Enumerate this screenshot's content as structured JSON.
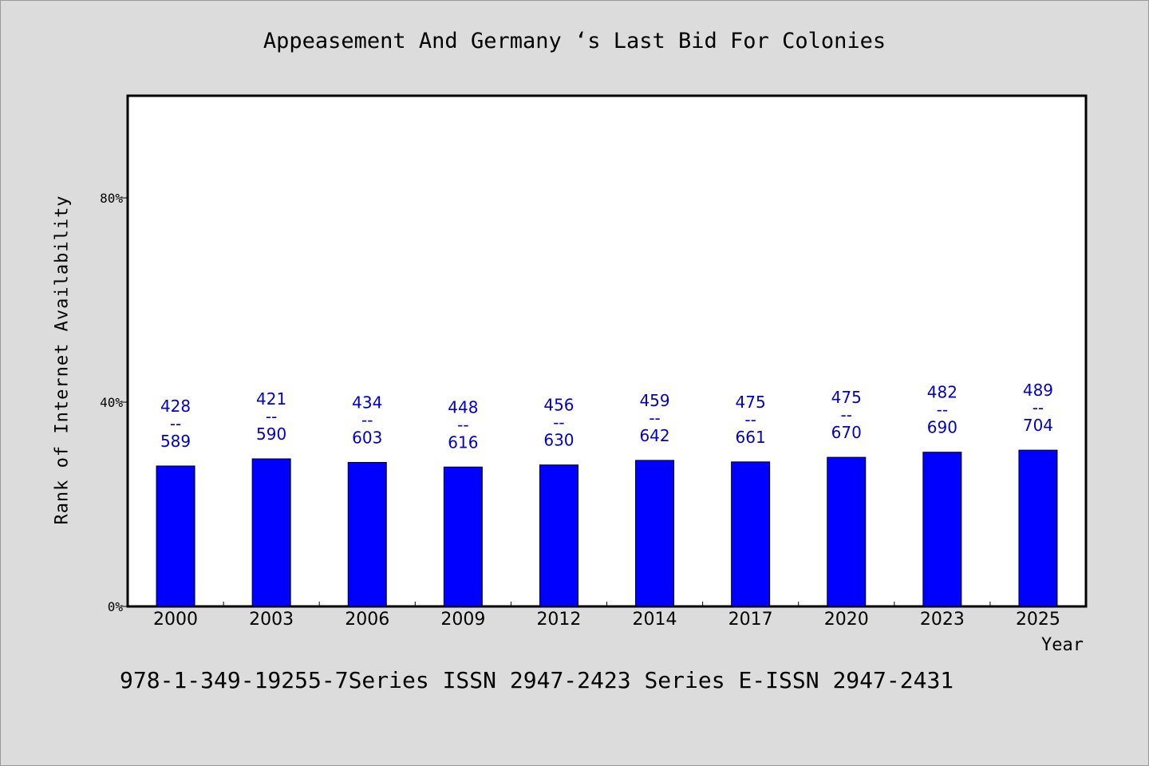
{
  "colors": {
    "background": "#dcdcdc",
    "plot_background": "#ffffff",
    "bar": "#0000ff",
    "data_label": "#0000cc"
  },
  "chart_data": {
    "type": "bar",
    "title": "Appeasement And Germany ‘s Last Bid For Colonies",
    "xlabel": "Year",
    "ylabel": "Rank of Internet Availability",
    "categories": [
      "2000",
      "2003",
      "2006",
      "2009",
      "2012",
      "2014",
      "2017",
      "2020",
      "2023",
      "2025"
    ],
    "values": [
      27.5,
      28.9,
      28.2,
      27.3,
      27.7,
      28.6,
      28.3,
      29.2,
      30.2,
      30.6
    ],
    "data_labels": [
      [
        "428",
        "--",
        "589"
      ],
      [
        "421",
        "--",
        "590"
      ],
      [
        "434",
        "--",
        "603"
      ],
      [
        "448",
        "--",
        "616"
      ],
      [
        "456",
        "--",
        "630"
      ],
      [
        "459",
        "--",
        "642"
      ],
      [
        "475",
        "--",
        "661"
      ],
      [
        "475",
        "--",
        "670"
      ],
      [
        "482",
        "--",
        "690"
      ],
      [
        "489",
        "--",
        "704"
      ]
    ],
    "ylim": [
      0,
      100
    ],
    "yticks": [
      0,
      40,
      80
    ],
    "ytick_labels": [
      "0%",
      "40%",
      "80%"
    ],
    "grid": false,
    "legend": false
  },
  "footer": "978-1-349-19255-7Series ISSN 2947-2423 Series E-ISSN 2947-2431"
}
